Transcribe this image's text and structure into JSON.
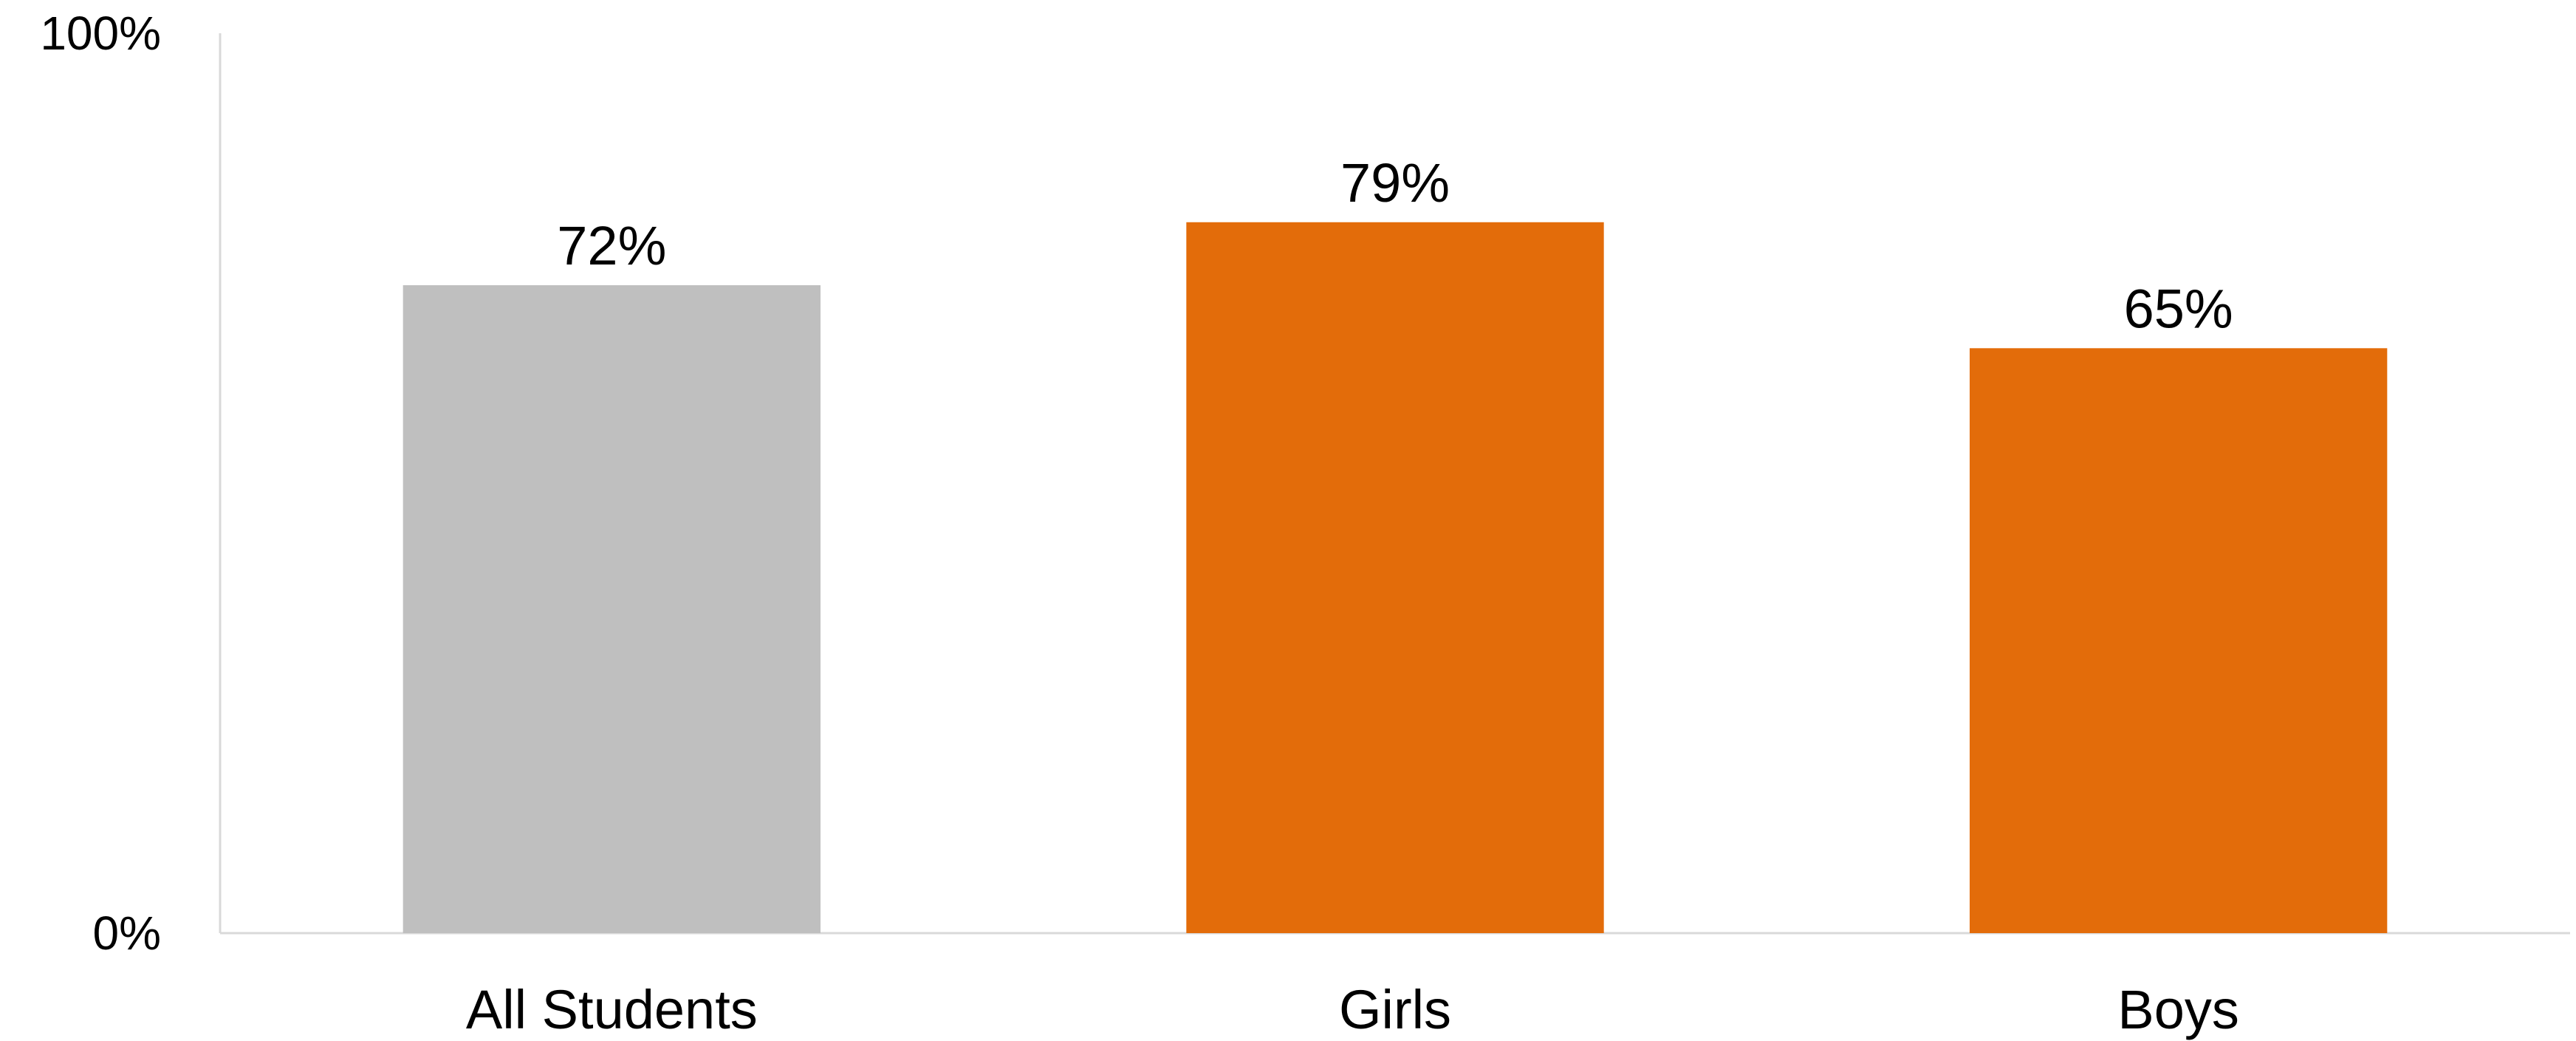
{
  "chart_data": {
    "type": "bar",
    "categories": [
      "All Students",
      "Girls",
      "Boys"
    ],
    "values": [
      72,
      79,
      65
    ],
    "data_labels": [
      "72%",
      "79%",
      "65%"
    ],
    "bar_colors": [
      "#BFBFBF",
      "#E36C0A",
      "#E36C0A"
    ],
    "title": "",
    "xlabel": "",
    "ylabel": "",
    "ylim": [
      0,
      100
    ],
    "y_ticks": [
      {
        "value": 0,
        "label": "0%"
      },
      {
        "value": 100,
        "label": "100%"
      }
    ],
    "grid": false,
    "legend": "none"
  }
}
